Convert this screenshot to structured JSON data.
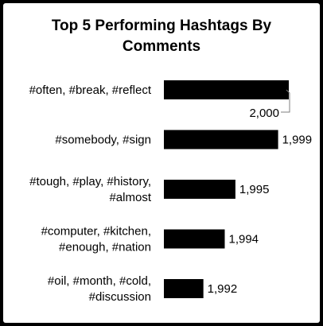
{
  "chart_data": {
    "type": "bar",
    "orientation": "horizontal",
    "title_lines": [
      "Top 5 Performing Hashtags By",
      "Comments"
    ],
    "categories": [
      [
        "#often, #break, #reflect"
      ],
      [
        "#somebody, #sign"
      ],
      [
        "#tough, #play, #history,",
        "#almost"
      ],
      [
        "#computer, #kitchen,",
        "#enough, #nation"
      ],
      [
        "#oil, #month, #cold,",
        "#discussion"
      ]
    ],
    "values": [
      2000,
      1999,
      1995,
      1994,
      1992
    ],
    "value_labels": [
      "2,000",
      "1,999",
      "1,995",
      "1,994",
      "1,992"
    ],
    "bar_color": "#000000",
    "xlabel": "",
    "ylabel": "",
    "grid": false,
    "legend": "none"
  }
}
